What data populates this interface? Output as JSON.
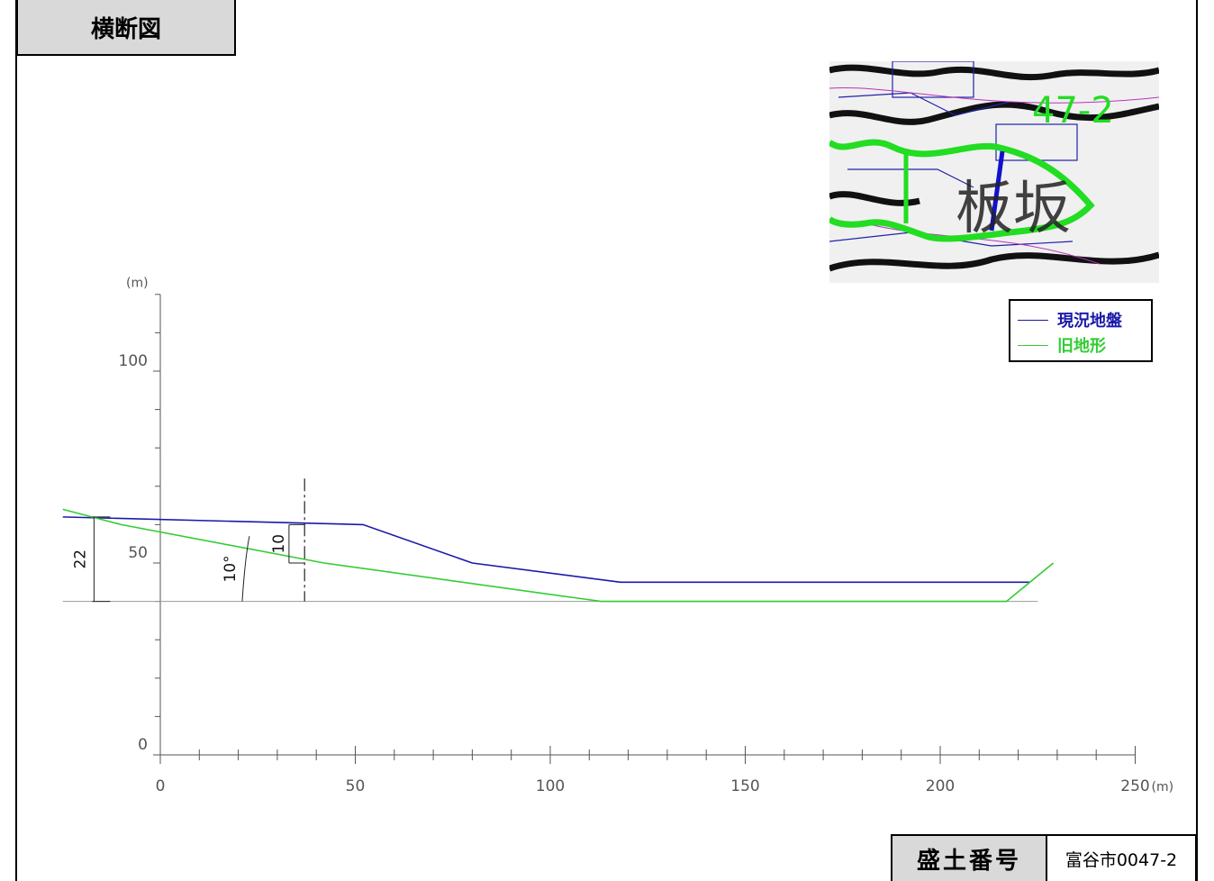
{
  "header": {
    "title": "横断図"
  },
  "map_inset": {
    "label": "47-2",
    "kanji": "板坂"
  },
  "legend": {
    "items": [
      {
        "label": "現況地盤",
        "color": "#1a1aa8"
      },
      {
        "label": "旧地形",
        "color": "#33cc33"
      }
    ]
  },
  "footer": {
    "id_label": "盛土番号",
    "id_value": "富谷市0047-2"
  },
  "chart_data": {
    "type": "line",
    "title": "",
    "xlabel": "(m)",
    "ylabel": "(m)",
    "xlim": [
      -25,
      250
    ],
    "ylim": [
      0,
      120
    ],
    "x_ticks": [
      0,
      50,
      100,
      150,
      200,
      250
    ],
    "y_ticks": [
      0,
      50,
      100
    ],
    "x_tick_labels": [
      "0",
      "50",
      "100",
      "150",
      "200",
      "250"
    ],
    "y_tick_labels": [
      "0",
      "50",
      "100"
    ],
    "datum_y": 40,
    "series": [
      {
        "name": "現況地盤",
        "color": "#1a1aa8",
        "points": [
          [
            -25,
            62
          ],
          [
            52,
            60
          ],
          [
            80,
            50
          ],
          [
            118,
            45
          ],
          [
            223,
            45
          ]
        ]
      },
      {
        "name": "旧地形",
        "color": "#33cc33",
        "points": [
          [
            -25,
            64
          ],
          [
            -10,
            60
          ],
          [
            42,
            50
          ],
          [
            113,
            40
          ],
          [
            217,
            40
          ],
          [
            229,
            50
          ]
        ]
      }
    ],
    "annotations": [
      {
        "label": "22",
        "x": -17,
        "y_from": 40,
        "y_to": 62
      },
      {
        "label": "10",
        "x": 33,
        "y_from": 50,
        "y_to": 60
      },
      {
        "label": "10°",
        "x": 21,
        "y_from": 40,
        "y_to": 57
      }
    ],
    "section_line_x": 37
  }
}
